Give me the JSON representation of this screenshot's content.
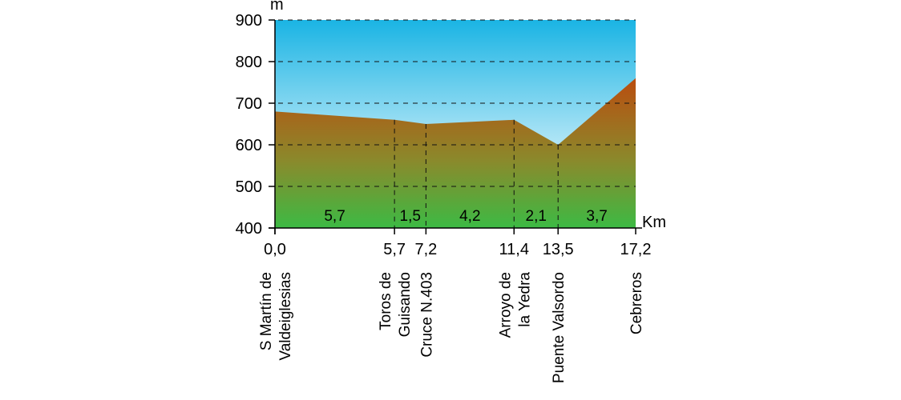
{
  "chart_data": {
    "type": "area",
    "title": "",
    "ylabel": "m",
    "xlabel": "Km",
    "ylim": [
      400,
      900
    ],
    "xlim": [
      0,
      17.2
    ],
    "yticks": [
      400,
      500,
      600,
      700,
      800,
      900
    ],
    "grid": "horizontal dashed",
    "x_ticks": [
      {
        "x": 0.0,
        "label": "0,0"
      },
      {
        "x": 5.7,
        "label": "5,7"
      },
      {
        "x": 7.2,
        "label": "7,2"
      },
      {
        "x": 11.4,
        "label": "11,4"
      },
      {
        "x": 13.5,
        "label": "13,5"
      },
      {
        "x": 17.2,
        "label": "17,2"
      }
    ],
    "profile": [
      {
        "x": 0.0,
        "y": 680
      },
      {
        "x": 5.7,
        "y": 660
      },
      {
        "x": 7.2,
        "y": 650
      },
      {
        "x": 11.4,
        "y": 660
      },
      {
        "x": 13.5,
        "y": 600
      },
      {
        "x": 17.2,
        "y": 760
      }
    ],
    "segments": [
      {
        "from": 0.0,
        "to": 5.7,
        "label": "5,7"
      },
      {
        "from": 5.7,
        "to": 7.2,
        "label": "1,5"
      },
      {
        "from": 7.2,
        "to": 11.4,
        "label": "4,2"
      },
      {
        "from": 11.4,
        "to": 13.5,
        "label": "2,1"
      },
      {
        "from": 13.5,
        "to": 17.2,
        "label": "3,7"
      }
    ],
    "places": [
      {
        "x": 0.0,
        "lines": [
          "S Martín de",
          "Valdeiglesias"
        ]
      },
      {
        "x": 5.7,
        "lines": [
          "Toros de",
          "Guisando"
        ]
      },
      {
        "x": 7.2,
        "lines": [
          "Cruce N.403"
        ]
      },
      {
        "x": 11.4,
        "lines": [
          "Arroyo de",
          "la Yedra"
        ]
      },
      {
        "x": 13.5,
        "lines": [
          "Puente Valsordo"
        ]
      },
      {
        "x": 17.2,
        "lines": [
          "Cebreros"
        ]
      }
    ],
    "colors": {
      "sky_top": "#1ab4e4",
      "sky_bottom": "#ffffff",
      "ground_top": "#b94e10",
      "ground_mid": "#8a8a2c",
      "ground_bottom": "#3cba44"
    }
  }
}
